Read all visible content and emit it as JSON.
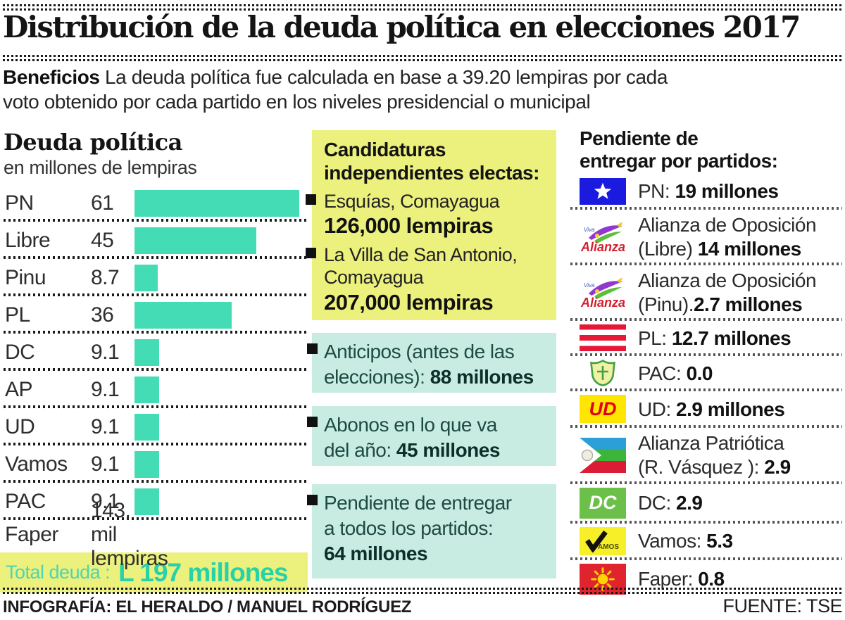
{
  "header": {
    "title": "Distribución de la deuda política en elecciones 2017",
    "intro_bold": "Beneficios",
    "intro_rest": " La deuda política fue calculada en base a 39.20 lempiras por cada\nvoto obtenido por cada partido en los niveles presidencial o municipal"
  },
  "chart_data": {
    "type": "bar",
    "orientation": "horizontal",
    "title": "Deuda política",
    "subtitle": "en millones de lempiras",
    "categories": [
      "PN",
      "Libre",
      "Pinu",
      "PL",
      "DC",
      "AP",
      "UD",
      "Vamos",
      "PAC",
      "Faper"
    ],
    "values": [
      61,
      45,
      8.7,
      36,
      9.1,
      9.1,
      9.1,
      9.1,
      9.1,
      0.143
    ],
    "value_labels": [
      "61",
      "45",
      "8.7",
      "36",
      "9.1",
      "9.1",
      "9.1",
      "9.1",
      "9.1",
      "143, mil lempiras"
    ],
    "unit": "millones de lempiras",
    "xlim": [
      0,
      61
    ],
    "grid": false,
    "bar_color": "#44dcb4",
    "total": {
      "label": "Total deuda :",
      "value": "L 197 millones"
    }
  },
  "middle": {
    "independents": {
      "title": "Candidaturas\nindependientes electas:",
      "items": [
        {
          "place": "Esquías, Comayagua",
          "amount": "126,000 lempiras"
        },
        {
          "place": "La Villa de San Antonio,\nComayagua",
          "amount": "207,000 lempiras"
        }
      ]
    },
    "boxes": [
      {
        "text": "Anticipos (antes de las\nelecciones): ",
        "value": "88 millones"
      },
      {
        "text": "Abonos en lo que va\ndel año: ",
        "value": "45 millones"
      },
      {
        "text": "Pendiente de entregar\na todos los partidos:\n",
        "value": "64 millones"
      }
    ]
  },
  "right": {
    "title": "Pendiente de\nentregar por partidos:",
    "rows": [
      {
        "party": "PN",
        "flag": "pn",
        "label": "PN: ",
        "value": "19 millones"
      },
      {
        "party": "Alianza de Oposición (Libre)",
        "flag": "alianza",
        "label": "Alianza de Oposición\n(Libre) ",
        "value": "14 millones"
      },
      {
        "party": "Alianza de Oposición (Pinu)",
        "flag": "alianza",
        "label": "Alianza de Oposición\n(Pinu).",
        "value": "2.7 millones"
      },
      {
        "party": "PL",
        "flag": "pl",
        "label": "PL: ",
        "value": "12.7 millones"
      },
      {
        "party": "PAC",
        "flag": "pac",
        "label": "PAC: ",
        "value": "0.0"
      },
      {
        "party": "UD",
        "flag": "ud",
        "label": "UD: ",
        "value": "2.9 millones"
      },
      {
        "party": "Alianza Patriótica",
        "flag": "ap",
        "label": "Alianza Patriótica\n(R. Vásquez ): ",
        "value": "2.9"
      },
      {
        "party": "DC",
        "flag": "dc",
        "label": "DC: ",
        "value": "2.9"
      },
      {
        "party": "Vamos",
        "flag": "vamos",
        "label": "Vamos: ",
        "value": "5.3"
      },
      {
        "party": "Faper",
        "flag": "faper",
        "label": "Faper: ",
        "value": "0.8"
      }
    ]
  },
  "footer": {
    "credit": "INFOGRAFÍA: EL HERALDO / MANUEL RODRÍGUEZ",
    "source": "FUENTE: TSE"
  },
  "colors": {
    "bar": "#44dcb4",
    "highlight_yellow": "#ecf17d",
    "highlight_cyan": "#c9ece2",
    "total_teal": "#27d2a9"
  }
}
